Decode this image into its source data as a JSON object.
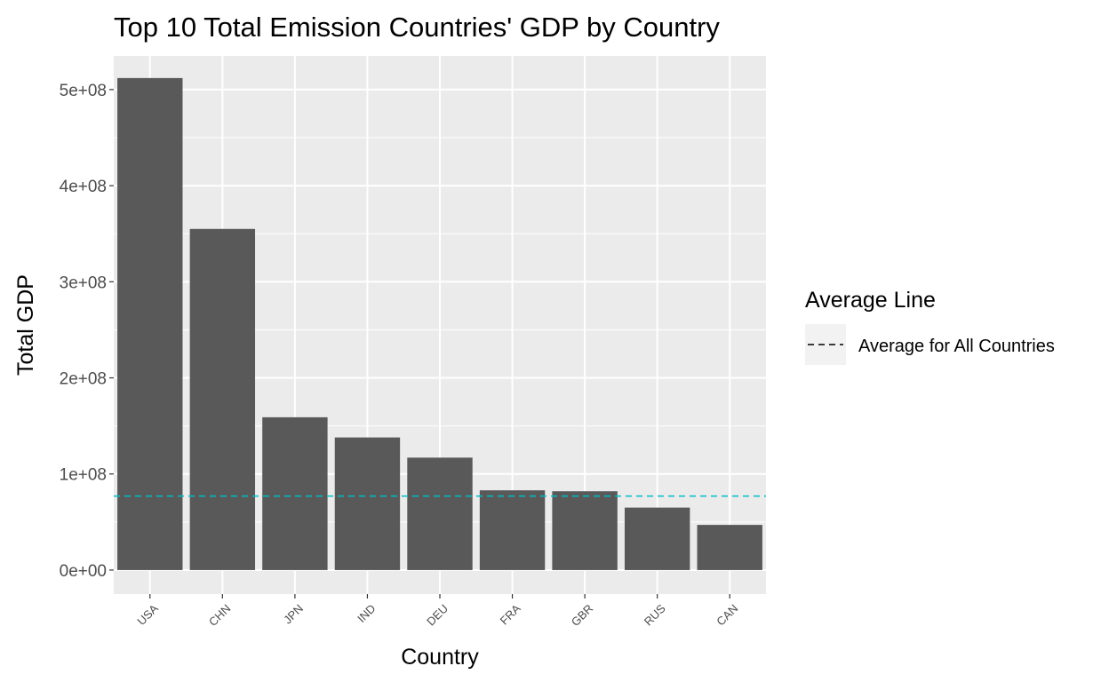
{
  "chart_data": {
    "type": "bar",
    "title": "Top 10 Total Emission Countries' GDP by Country",
    "xlabel": "Country",
    "ylabel": "Total GDP",
    "categories": [
      "USA",
      "CHN",
      "JPN",
      "IND",
      "DEU",
      "FRA",
      "GBR",
      "RUS",
      "CAN"
    ],
    "values": [
      512000000,
      355000000,
      159000000,
      138000000,
      117000000,
      83000000,
      82000000,
      65000000,
      47000000
    ],
    "ylim": [
      -25000000,
      535000000
    ],
    "yticks": [
      0,
      100000000,
      200000000,
      300000000,
      400000000,
      500000000
    ],
    "ytick_labels": [
      "0e+00",
      "1e+08",
      "2e+08",
      "3e+08",
      "4e+08",
      "5e+08"
    ],
    "reference_line": {
      "value": 77000000,
      "style": "dashed",
      "color": "#00BFC4",
      "legend_label": "Average for All Countries"
    },
    "legend": {
      "title": "Average Line",
      "position": "right"
    },
    "bar_color": "#595959",
    "panel_color": "#EBEBEB",
    "grid": true
  }
}
